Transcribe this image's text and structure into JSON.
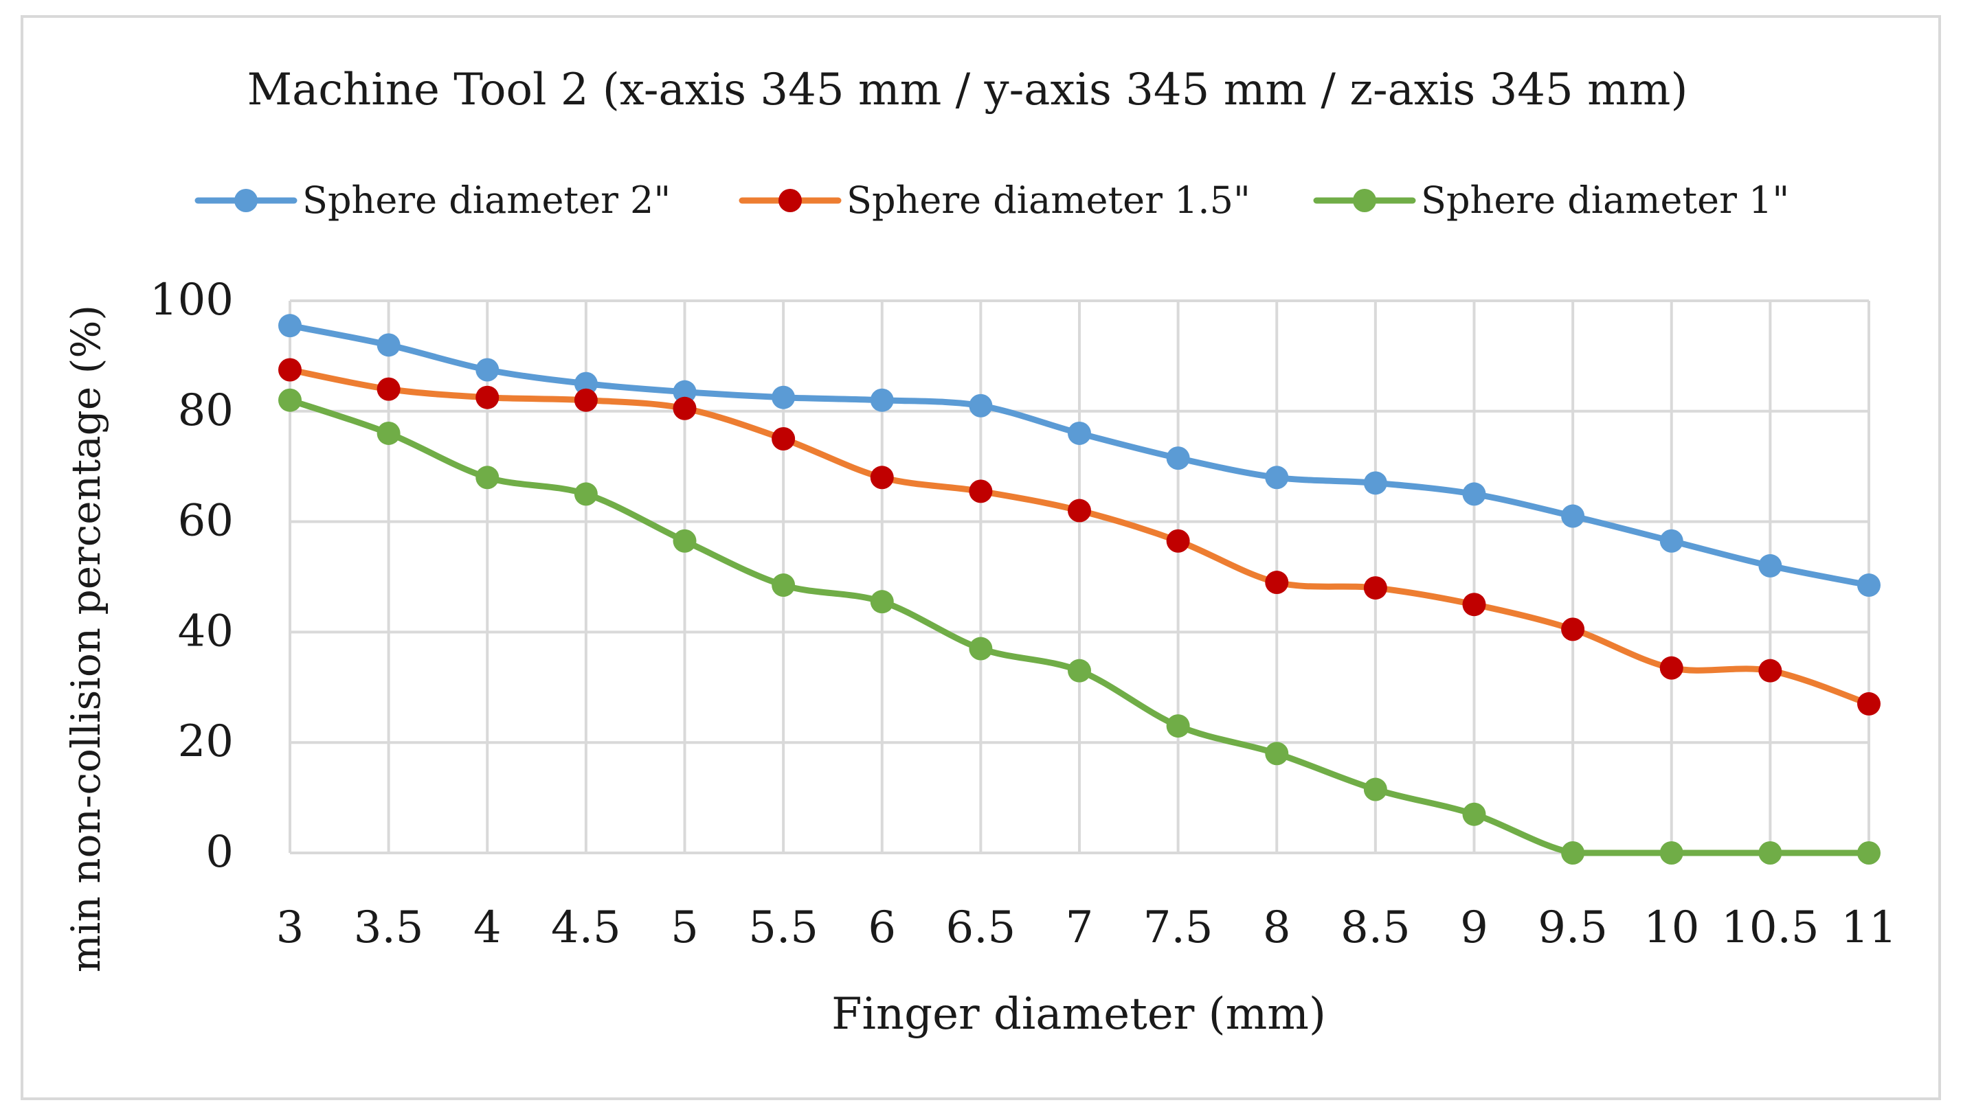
{
  "chart_data": {
    "type": "line",
    "title": "Machine Tool 2 (x-axis 345 mm / y-axis 345 mm / z-axis 345 mm)",
    "xlabel": "Finger diameter (mm)",
    "ylabel": "min non-collision percentage (%)",
    "x": [
      "3",
      "3.5",
      "4",
      "4.5",
      "5",
      "5.5",
      "6",
      "6.5",
      "7",
      "7.5",
      "8",
      "8.5",
      "9",
      "9.5",
      "10",
      "10.5",
      "11"
    ],
    "ylim": [
      0,
      100
    ],
    "yticks": [
      "0",
      "20",
      "40",
      "60",
      "80",
      "100"
    ],
    "grid": true,
    "legend_position": "top",
    "series": [
      {
        "name": "Sphere diameter 2\"",
        "line_color": "#5b9bd5",
        "marker_color": "#5b9bd5",
        "values": [
          95.5,
          92,
          87.5,
          85,
          83.5,
          82.5,
          82,
          81,
          76,
          71.5,
          68,
          67,
          65,
          61,
          56.5,
          52,
          48.5
        ]
      },
      {
        "name": "Sphere diameter 1.5\"",
        "line_color": "#ed7d31",
        "marker_color": "#c00000",
        "values": [
          87.5,
          84,
          82.5,
          82,
          80.5,
          75,
          68,
          65.5,
          62,
          56.5,
          49,
          48,
          45,
          40.5,
          33.5,
          33,
          27
        ]
      },
      {
        "name": "Sphere diameter 1\"",
        "line_color": "#70ad47",
        "marker_color": "#70ad47",
        "values": [
          82,
          76,
          68,
          65,
          56.5,
          48.5,
          45.5,
          37,
          33,
          23,
          18,
          11.5,
          7,
          0,
          0,
          0,
          0
        ]
      }
    ]
  },
  "colors": {
    "gridline": "#d9d9d9",
    "text": "#1a1a1a",
    "frame": "#d9d9d9"
  }
}
